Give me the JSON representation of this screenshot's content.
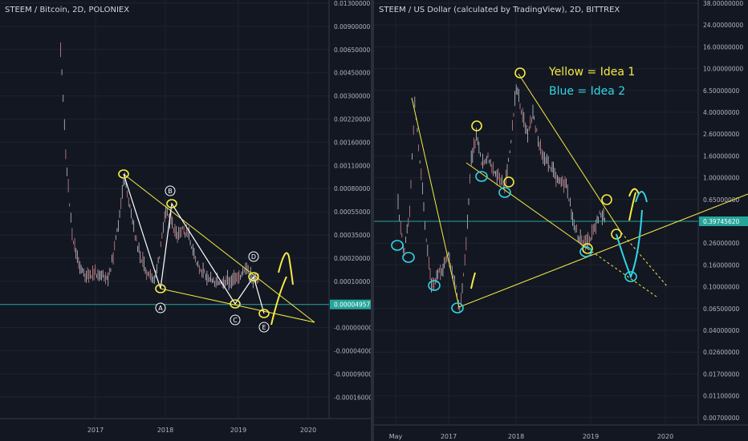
{
  "colors": {
    "background": "#131722",
    "grid": "#1f2330",
    "axis_text": "#b2b5be",
    "candle": "#e0e3eb",
    "candle_down": "#ef9a9a",
    "drawing_yellow": "#f5ec42",
    "drawing_white": "#ffffff",
    "drawing_cyan": "#31d6e6",
    "price_line": "#26a69a"
  },
  "chart_data": [
    {
      "type": "line",
      "title": "STEEM / Bitcoin, 2D, POLONIEX",
      "scale": "symmetric-log",
      "x_tick_labels": [
        "2017",
        "2018",
        "2019",
        "2020"
      ],
      "y_tick_labels": [
        "0.01300000",
        "0.00900000",
        "0.00650000",
        "0.00450000",
        "0.00300000",
        "0.00220000",
        "0.00160000",
        "0.00110000",
        "0.00080000",
        "0.00055000",
        "0.00035000",
        "0.00020000",
        "0.00010000",
        "0.00004957",
        "-0.00000000",
        "-0.00004000",
        "-0.00009000",
        "-0.00016000"
      ],
      "current_price_label": "0.00004957",
      "series": [
        {
          "x": [
            "2016-07",
            "2016-08",
            "2016-09",
            "2016-10",
            "2016-11",
            "2016-12",
            "2017-01",
            "2017-02",
            "2017-03",
            "2017-04",
            "2017-05",
            "2017-06",
            "2017-07",
            "2017-08",
            "2017-09",
            "2017-10",
            "2017-11",
            "2017-12",
            "2018-01",
            "2018-02",
            "2018-03",
            "2018-04",
            "2018-05",
            "2018-06",
            "2018-07",
            "2018-08",
            "2018-09",
            "2018-10",
            "2018-11",
            "2018-12",
            "2019-01",
            "2019-02",
            "2019-03",
            "2019-04",
            "2019-05"
          ],
          "values": [
            0.0065,
            0.0011,
            0.00035,
            0.00018,
            0.00012,
            0.00011,
            0.00013,
            0.00012,
            8e-05,
            0.0002,
            0.00045,
            0.00095,
            0.00055,
            0.0003,
            0.00018,
            0.00012,
            9e-05,
            0.0002,
            0.00058,
            0.00045,
            0.00032,
            0.00038,
            0.00035,
            0.0002,
            0.00014,
            0.00012,
            0.0001,
            0.0001,
            9e-05,
            7e-05,
            0.0001,
            0.00012,
            0.00014,
            8e-05,
            5e-05
          ]
        }
      ],
      "annotations": {
        "wave_labels": [
          "B",
          "A",
          "C",
          "D",
          "E"
        ]
      }
    },
    {
      "type": "line",
      "title": "STEEM / US Dollar (calculated by TradingView), 2D, BITTREX",
      "scale": "log",
      "x_tick_labels": [
        "May",
        "2017",
        "2018",
        "2019",
        "2020"
      ],
      "y_tick_labels": [
        "38.00000000",
        "24.00000000",
        "16.00000000",
        "10.00000000",
        "6.50000000",
        "4.00000000",
        "2.60000000",
        "1.60000000",
        "1.00000000",
        "0.65000000",
        "0.39745620",
        "0.26000000",
        "0.16000000",
        "0.10000000",
        "0.06500000",
        "0.04000000",
        "0.02600000",
        "0.01700000",
        "0.01100000",
        "0.00700000"
      ],
      "current_price_label": "0.39745620",
      "series": [
        {
          "x": [
            "2016-04",
            "2016-05",
            "2016-06",
            "2016-07",
            "2016-08",
            "2016-09",
            "2016-10",
            "2016-11",
            "2016-12",
            "2017-01",
            "2017-02",
            "2017-03",
            "2017-04",
            "2017-05",
            "2017-06",
            "2017-07",
            "2017-08",
            "2017-09",
            "2017-10",
            "2017-11",
            "2017-12",
            "2018-01",
            "2018-02",
            "2018-03",
            "2018-04",
            "2018-05",
            "2018-06",
            "2018-07",
            "2018-08",
            "2018-09",
            "2018-10",
            "2018-11",
            "2018-12",
            "2019-01",
            "2019-02",
            "2019-03",
            "2019-04",
            "2019-05"
          ],
          "values": [
            0.6,
            0.2,
            0.45,
            5,
            1.2,
            0.3,
            0.1,
            0.13,
            0.15,
            0.2,
            0.12,
            0.06,
            0.2,
            1.5,
            2.5,
            1.3,
            1.5,
            1.1,
            1.0,
            0.8,
            2.0,
            7.0,
            4.0,
            2.5,
            3.8,
            2.2,
            1.5,
            1.3,
            1.0,
            0.9,
            0.85,
            0.45,
            0.3,
            0.25,
            0.28,
            0.35,
            0.5,
            0.4
          ]
        }
      ],
      "annotations": {
        "legend_text": [
          "Yellow = Idea 1",
          "Blue = Idea 2"
        ]
      }
    }
  ]
}
